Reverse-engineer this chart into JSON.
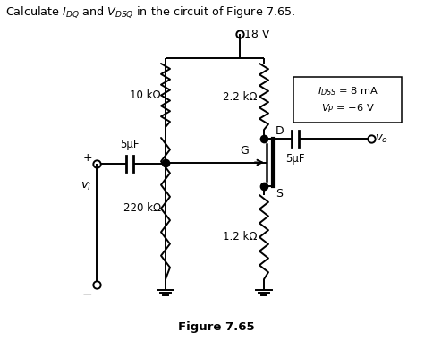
{
  "title": "Calculate $I_{DQ}$ and $V_{DSQ}$ in the circuit of Figure 7.65.",
  "figure_label": "Figure 7.65",
  "vdd": "18 V",
  "r_drain_label": "2.2 kΩ",
  "r_top_label": "10 kΩ",
  "r_bot_label": "220 kΩ",
  "r_source_label": "1.2 kΩ",
  "c1_label": "5μF",
  "c2_label": "5μF",
  "node_d": "D",
  "node_g": "G",
  "node_s": "S",
  "vo_label": "$v_o$",
  "vi_label": "$v_i$",
  "plus": "+",
  "minus": "−",
  "bg_color": "#ffffff",
  "line_color": "#000000",
  "box_line": "#000000",
  "idss_line1": "$I_{DSS}$ = 8 mA",
  "idss_line2": "$V_P$ = −6 V"
}
